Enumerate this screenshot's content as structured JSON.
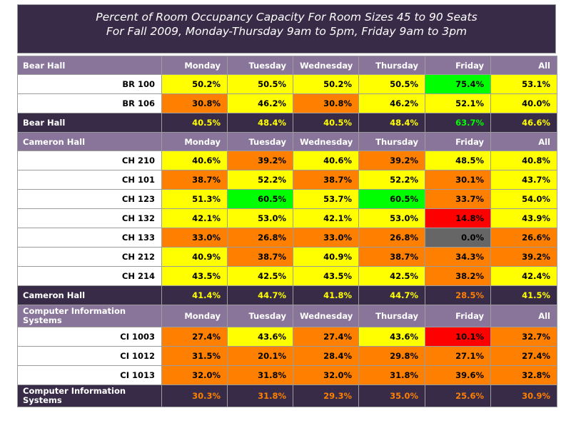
{
  "title": {
    "line1": "Percent of Room Occupancy Capacity For Room Sizes 45 to 90 Seats",
    "line2": "For Fall 2009, Monday-Thursday 9am to 5pm, Friday 9am to 3pm"
  },
  "columns": [
    "Monday",
    "Tuesday",
    "Wednesday",
    "Thursday",
    "Friday",
    "All"
  ],
  "colors": {
    "yellow": "#ffff00",
    "orange": "#ff8000",
    "green": "#00ff00",
    "red": "#ff0000",
    "gray": "#666666",
    "header": "#887599",
    "summary": "#372b47"
  },
  "buildings": [
    {
      "name": "Bear Hall",
      "rooms": [
        {
          "room": "BR 100",
          "values": [
            "50.2%",
            "50.5%",
            "50.2%",
            "50.5%",
            "75.4%",
            "53.1%"
          ],
          "colors": [
            "yellow",
            "yellow",
            "yellow",
            "yellow",
            "green",
            "yellow"
          ]
        },
        {
          "room": "BR 106",
          "values": [
            "30.8%",
            "46.2%",
            "30.8%",
            "46.2%",
            "52.1%",
            "40.0%"
          ],
          "colors": [
            "orange",
            "yellow",
            "orange",
            "yellow",
            "yellow",
            "yellow"
          ]
        }
      ],
      "summary": {
        "values": [
          "40.5%",
          "48.4%",
          "40.5%",
          "48.4%",
          "63.7%",
          "46.6%"
        ],
        "colors": [
          "yellow",
          "yellow",
          "yellow",
          "yellow",
          "green",
          "yellow"
        ]
      }
    },
    {
      "name": "Cameron Hall",
      "rooms": [
        {
          "room": "CH 210",
          "values": [
            "40.6%",
            "39.2%",
            "40.6%",
            "39.2%",
            "48.5%",
            "40.8%"
          ],
          "colors": [
            "yellow",
            "orange",
            "yellow",
            "orange",
            "yellow",
            "yellow"
          ]
        },
        {
          "room": "CH 101",
          "values": [
            "38.7%",
            "52.2%",
            "38.7%",
            "52.2%",
            "30.1%",
            "43.7%"
          ],
          "colors": [
            "orange",
            "yellow",
            "orange",
            "yellow",
            "orange",
            "yellow"
          ]
        },
        {
          "room": "CH 123",
          "values": [
            "51.3%",
            "60.5%",
            "53.7%",
            "60.5%",
            "33.7%",
            "54.0%"
          ],
          "colors": [
            "yellow",
            "green",
            "yellow",
            "green",
            "orange",
            "yellow"
          ]
        },
        {
          "room": "CH 132",
          "values": [
            "42.1%",
            "53.0%",
            "42.1%",
            "53.0%",
            "14.8%",
            "43.9%"
          ],
          "colors": [
            "yellow",
            "yellow",
            "yellow",
            "yellow",
            "red",
            "yellow"
          ]
        },
        {
          "room": "CH 133",
          "values": [
            "33.0%",
            "26.8%",
            "33.0%",
            "26.8%",
            "0.0%",
            "26.6%"
          ],
          "colors": [
            "orange",
            "orange",
            "orange",
            "orange",
            "gray",
            "orange"
          ]
        },
        {
          "room": "CH 212",
          "values": [
            "40.9%",
            "38.7%",
            "40.9%",
            "38.7%",
            "34.3%",
            "39.2%"
          ],
          "colors": [
            "yellow",
            "orange",
            "yellow",
            "orange",
            "orange",
            "orange"
          ]
        },
        {
          "room": "CH 214",
          "values": [
            "43.5%",
            "42.5%",
            "43.5%",
            "42.5%",
            "38.2%",
            "42.4%"
          ],
          "colors": [
            "yellow",
            "yellow",
            "yellow",
            "yellow",
            "orange",
            "yellow"
          ]
        }
      ],
      "summary": {
        "values": [
          "41.4%",
          "44.7%",
          "41.8%",
          "44.7%",
          "28.5%",
          "41.5%"
        ],
        "colors": [
          "yellow",
          "yellow",
          "yellow",
          "yellow",
          "orange",
          "yellow"
        ]
      }
    },
    {
      "name": "Computer Information Systems",
      "rooms": [
        {
          "room": "CI 1003",
          "values": [
            "27.4%",
            "43.6%",
            "27.4%",
            "43.6%",
            "10.1%",
            "32.7%"
          ],
          "colors": [
            "orange",
            "yellow",
            "orange",
            "yellow",
            "red",
            "orange"
          ]
        },
        {
          "room": "CI 1012",
          "values": [
            "31.5%",
            "20.1%",
            "28.4%",
            "29.8%",
            "27.1%",
            "27.4%"
          ],
          "colors": [
            "orange",
            "orange",
            "orange",
            "orange",
            "orange",
            "orange"
          ]
        },
        {
          "room": "CI 1013",
          "values": [
            "32.0%",
            "31.8%",
            "32.0%",
            "31.8%",
            "39.6%",
            "32.8%"
          ],
          "colors": [
            "orange",
            "orange",
            "orange",
            "orange",
            "orange",
            "orange"
          ]
        }
      ],
      "summary": {
        "values": [
          "30.3%",
          "31.8%",
          "29.3%",
          "35.0%",
          "25.6%",
          "30.9%"
        ],
        "colors": [
          "orange",
          "orange",
          "orange",
          "orange",
          "orange",
          "orange"
        ]
      }
    }
  ]
}
